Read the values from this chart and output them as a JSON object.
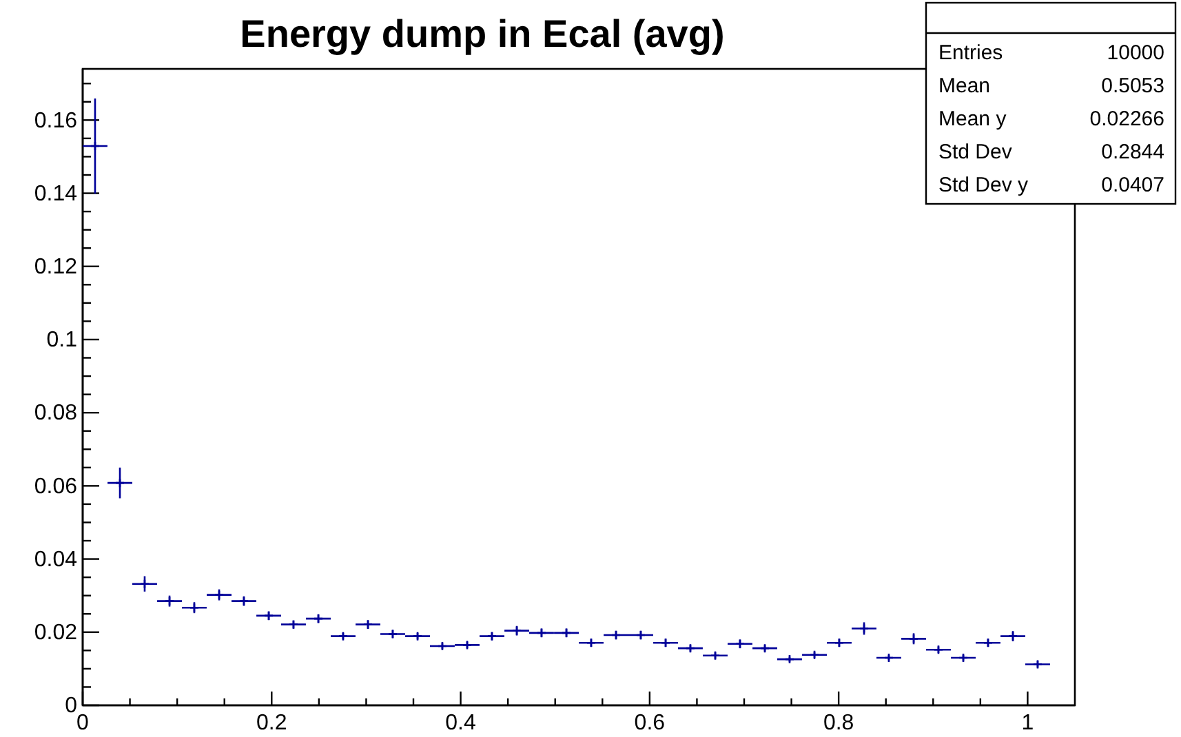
{
  "chart_data": {
    "type": "scatter",
    "title": "Energy dump in Ecal (avg)",
    "marker": "cross",
    "grid": false,
    "x": [
      0.0131,
      0.0394,
      0.0656,
      0.0919,
      0.1181,
      0.1444,
      0.1706,
      0.1969,
      0.2231,
      0.2494,
      0.2756,
      0.3019,
      0.3281,
      0.3544,
      0.3806,
      0.4069,
      0.4331,
      0.4594,
      0.4856,
      0.5119,
      0.5381,
      0.5644,
      0.5906,
      0.6169,
      0.6431,
      0.6694,
      0.6956,
      0.7219,
      0.7481,
      0.7744,
      0.8006,
      0.8269,
      0.8531,
      0.8794,
      0.9056,
      0.9319,
      0.9581,
      0.9844,
      1.0106
    ],
    "series": [
      {
        "color": "#000099",
        "values": [
          0.1529,
          0.0608,
          0.0332,
          0.0285,
          0.0267,
          0.0302,
          0.0285,
          0.0245,
          0.0221,
          0.0237,
          0.0189,
          0.0221,
          0.0195,
          0.0189,
          0.0162,
          0.0165,
          0.0189,
          0.0204,
          0.0198,
          0.0198,
          0.0171,
          0.0192,
          0.0192,
          0.0171,
          0.0156,
          0.0136,
          0.0168,
          0.0156,
          0.0126,
          0.0138,
          0.0171,
          0.021,
          0.013,
          0.0182,
          0.0152,
          0.013,
          0.0171,
          0.0189,
          0.0112
        ],
        "errors": [
          0.013,
          0.0042,
          0.0021,
          0.0015,
          0.0015,
          0.0015,
          0.0013,
          0.0012,
          0.0011,
          0.0012,
          0.0009,
          0.0012,
          0.0011,
          0.0009,
          0.0008,
          0.0009,
          0.0011,
          0.0013,
          0.0012,
          0.0012,
          0.0011,
          0.0012,
          0.0012,
          0.0011,
          0.0009,
          0.0009,
          0.0012,
          0.0009,
          0.0007,
          0.0008,
          0.0011,
          0.0017,
          0.0007,
          0.0015,
          0.0009,
          0.0008,
          0.0011,
          0.0014,
          0.0009
        ],
        "xerrors": [
          0.0131,
          0.0131,
          0.0131,
          0.0131,
          0.0131,
          0.0131,
          0.0131,
          0.0131,
          0.0131,
          0.0131,
          0.0131,
          0.0131,
          0.0131,
          0.0131,
          0.0131,
          0.0131,
          0.0131,
          0.0131,
          0.0131,
          0.0131,
          0.0131,
          0.0131,
          0.0131,
          0.0131,
          0.0131,
          0.0131,
          0.0131,
          0.0131,
          0.0131,
          0.0131,
          0.0131,
          0.0131,
          0.0131,
          0.0131,
          0.0131,
          0.0131,
          0.0131,
          0.0131,
          0.0131
        ]
      }
    ],
    "xlim": [
      0,
      1.05
    ],
    "ylim": [
      0,
      0.174
    ],
    "xticks": [
      0,
      {
        "value": 0.05,
        "label": null
      },
      {
        "value": 0.1,
        "label": null
      },
      {
        "value": 0.15,
        "label": null
      },
      0.2,
      {
        "value": 0.25,
        "label": null
      },
      {
        "value": 0.3,
        "label": null
      },
      {
        "value": 0.35,
        "label": null
      },
      0.4,
      {
        "value": 0.45,
        "label": null
      },
      {
        "value": 0.5,
        "label": null
      },
      {
        "value": 0.55,
        "label": null
      },
      0.6,
      {
        "value": 0.65,
        "label": null
      },
      {
        "value": 0.7,
        "label": null
      },
      {
        "value": 0.75,
        "label": null
      },
      0.8,
      {
        "value": 0.85,
        "label": null
      },
      {
        "value": 0.9,
        "label": null
      },
      {
        "value": 0.95,
        "label": null
      },
      1
    ],
    "yticks": [
      0,
      {
        "value": 0.005,
        "label": null
      },
      {
        "value": 0.01,
        "label": null
      },
      {
        "value": 0.015,
        "label": null
      },
      0.02,
      {
        "value": 0.025,
        "label": null
      },
      {
        "value": 0.03,
        "label": null
      },
      {
        "value": 0.035,
        "label": null
      },
      0.04,
      {
        "value": 0.045,
        "label": null
      },
      {
        "value": 0.05,
        "label": null
      },
      {
        "value": 0.055,
        "label": null
      },
      0.06,
      {
        "value": 0.065,
        "label": null
      },
      {
        "value": 0.07,
        "label": null
      },
      {
        "value": 0.075,
        "label": null
      },
      0.08,
      {
        "value": 0.085,
        "label": null
      },
      {
        "value": 0.09,
        "label": null
      },
      {
        "value": 0.095,
        "label": null
      },
      0.1,
      {
        "value": 0.105,
        "label": null
      },
      {
        "value": 0.11,
        "label": null
      },
      {
        "value": 0.115,
        "label": null
      },
      0.12,
      {
        "value": 0.125,
        "label": null
      },
      {
        "value": 0.13,
        "label": null
      },
      {
        "value": 0.135,
        "label": null
      },
      0.14,
      {
        "value": 0.145,
        "label": null
      },
      {
        "value": 0.15,
        "label": null
      },
      {
        "value": 0.155,
        "label": null
      },
      0.16,
      {
        "value": 0.165,
        "label": null
      },
      {
        "value": 0.17,
        "label": null
      }
    ],
    "annotations": [
      "Entries",
      "10000",
      "Mean",
      "0.5053",
      "Mean y",
      "0.02266",
      "Std Dev",
      "0.2844",
      "Std Dev y",
      "0.0407"
    ]
  }
}
